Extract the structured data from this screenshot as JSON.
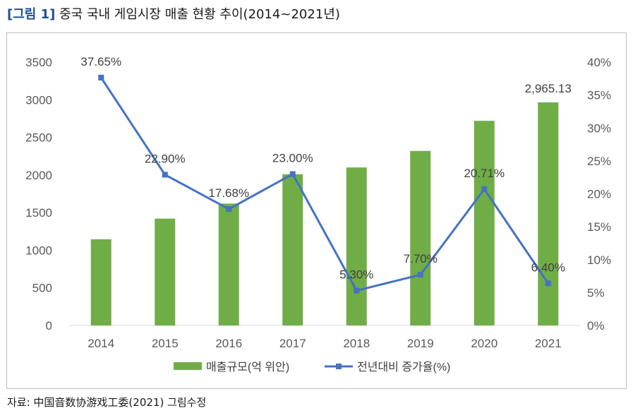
{
  "figure": {
    "label": "[그림 1]",
    "title": "중국 국내 게임시장 매출 현황 추이(2014~2021년)"
  },
  "source": "자료: 中国音数协游戏工委(2021) 그림수정",
  "chart_data": {
    "type": "bar+line",
    "categories": [
      "2014",
      "2015",
      "2016",
      "2017",
      "2018",
      "2019",
      "2020",
      "2021"
    ],
    "series": [
      {
        "name": "매출규모(억 위안)",
        "type": "bar",
        "axis": "left",
        "color": "#70ad47",
        "values": [
          1145,
          1420,
          1620,
          2010,
          2100,
          2320,
          2720,
          2965.13
        ],
        "data_labels": [
          "",
          "",
          "",
          "",
          "",
          "",
          "",
          "2,965.13"
        ]
      },
      {
        "name": "전년대비 증가율(%)",
        "type": "line",
        "axis": "right",
        "color": "#4472c4",
        "values": [
          37.65,
          22.9,
          17.68,
          23.0,
          5.3,
          7.7,
          20.71,
          6.4
        ],
        "data_labels": [
          "37.65%",
          "22.90%",
          "17.68%",
          "23.00%",
          "5.30%",
          "7.70%",
          "20.71%",
          "6.40%"
        ]
      }
    ],
    "y_left": {
      "min": 0,
      "max": 3500,
      "step": 500,
      "ticks": [
        "0",
        "500",
        "1000",
        "1500",
        "2000",
        "2500",
        "3000",
        "3500"
      ]
    },
    "y_right": {
      "min": 0,
      "max": 40,
      "step": 5,
      "ticks": [
        "0%",
        "5%",
        "10%",
        "15%",
        "20%",
        "25%",
        "30%",
        "35%",
        "40%"
      ]
    },
    "grid": false,
    "legend_position": "bottom"
  }
}
